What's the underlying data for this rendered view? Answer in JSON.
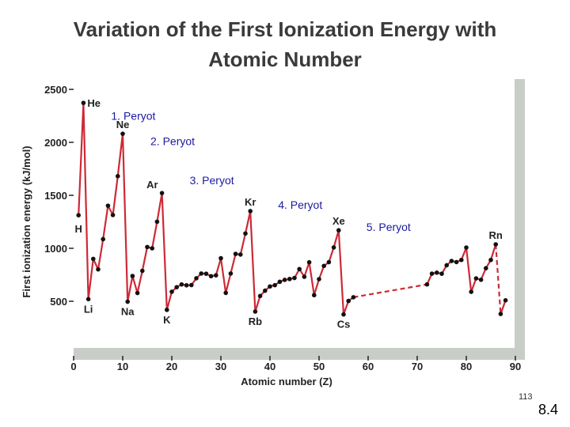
{
  "title_line1": "Variation of the First Ionization Energy with",
  "title_line2": "Atomic Number",
  "slide_number": "113",
  "section_number": "8.4",
  "colors": {
    "line": "#cc2a36",
    "point": "#111111",
    "plot_bg": "#ffffff",
    "frame": "#c8cdc8",
    "period_label": "#1a1aa0"
  },
  "chart_data": {
    "type": "line",
    "title": "Variation of the First Ionization Energy with Atomic Number",
    "xlabel": "Atomic number (Z)",
    "ylabel": "First ionization energy (kJ/mol)",
    "xlim": [
      0,
      90
    ],
    "ylim": [
      0,
      2500
    ],
    "xticks": [
      0,
      10,
      20,
      30,
      40,
      50,
      60,
      70,
      80,
      90
    ],
    "yticks": [
      500,
      1000,
      1500,
      2000,
      2500
    ],
    "grid": false,
    "series": [
      {
        "style": "solid",
        "points": [
          [
            1,
            1312
          ],
          [
            2,
            2372
          ],
          [
            3,
            520
          ],
          [
            4,
            900
          ],
          [
            5,
            801
          ],
          [
            6,
            1086
          ],
          [
            7,
            1402
          ],
          [
            8,
            1314
          ],
          [
            9,
            1681
          ],
          [
            10,
            2081
          ],
          [
            11,
            496
          ],
          [
            12,
            738
          ],
          [
            13,
            578
          ],
          [
            14,
            787
          ],
          [
            15,
            1012
          ],
          [
            16,
            1000
          ],
          [
            17,
            1251
          ],
          [
            18,
            1521
          ],
          [
            19,
            419
          ],
          [
            20,
            590
          ],
          [
            21,
            633
          ],
          [
            22,
            659
          ],
          [
            23,
            651
          ],
          [
            24,
            653
          ],
          [
            25,
            717
          ],
          [
            26,
            762
          ],
          [
            27,
            760
          ],
          [
            28,
            737
          ],
          [
            29,
            745
          ],
          [
            30,
            906
          ],
          [
            31,
            579
          ],
          [
            32,
            762
          ],
          [
            33,
            947
          ],
          [
            34,
            941
          ],
          [
            35,
            1140
          ],
          [
            36,
            1351
          ],
          [
            37,
            403
          ],
          [
            38,
            550
          ],
          [
            39,
            600
          ],
          [
            40,
            640
          ],
          [
            41,
            652
          ],
          [
            42,
            684
          ],
          [
            43,
            702
          ],
          [
            44,
            710
          ],
          [
            45,
            720
          ],
          [
            46,
            804
          ],
          [
            47,
            731
          ],
          [
            48,
            868
          ],
          [
            49,
            558
          ],
          [
            50,
            709
          ],
          [
            51,
            834
          ],
          [
            52,
            869
          ],
          [
            53,
            1008
          ],
          [
            54,
            1170
          ],
          [
            55,
            376
          ],
          [
            56,
            503
          ],
          [
            57,
            538
          ]
        ]
      },
      {
        "style": "dashed",
        "points": [
          [
            57,
            538
          ],
          [
            72,
            659
          ]
        ]
      },
      {
        "style": "solid",
        "points": [
          [
            72,
            659
          ],
          [
            73,
            761
          ],
          [
            74,
            770
          ],
          [
            75,
            760
          ],
          [
            76,
            840
          ],
          [
            77,
            880
          ],
          [
            78,
            870
          ],
          [
            79,
            890
          ],
          [
            80,
            1007
          ],
          [
            81,
            589
          ],
          [
            82,
            716
          ],
          [
            83,
            703
          ],
          [
            84,
            812
          ],
          [
            85,
            890
          ],
          [
            86,
            1037
          ]
        ]
      },
      {
        "style": "dashed",
        "points": [
          [
            86,
            1037
          ],
          [
            87,
            380
          ]
        ]
      },
      {
        "style": "solid",
        "points": [
          [
            87,
            380
          ],
          [
            88,
            509
          ]
        ]
      }
    ],
    "element_labels": [
      {
        "symbol": "He",
        "z": 2,
        "side": "right"
      },
      {
        "symbol": "Ne",
        "z": 10,
        "side": "above"
      },
      {
        "symbol": "Ar",
        "z": 18,
        "side": "left"
      },
      {
        "symbol": "Kr",
        "z": 36,
        "side": "above"
      },
      {
        "symbol": "Xe",
        "z": 54,
        "side": "above"
      },
      {
        "symbol": "Rn",
        "z": 86,
        "side": "above"
      },
      {
        "symbol": "H",
        "z": 1,
        "side": "below"
      },
      {
        "symbol": "Li",
        "z": 3,
        "side": "below"
      },
      {
        "symbol": "Na",
        "z": 11,
        "side": "below"
      },
      {
        "symbol": "K",
        "z": 19,
        "side": "below"
      },
      {
        "symbol": "Rb",
        "z": 37,
        "side": "below"
      },
      {
        "symbol": "Cs",
        "z": 55,
        "side": "below"
      }
    ],
    "annotations": [
      {
        "text": "1. Peryot",
        "z": 2,
        "y": 2250
      },
      {
        "text": "2. Peryot",
        "z": 10,
        "y": 2010
      },
      {
        "text": "3. Peryot",
        "z": 18,
        "y": 1640
      },
      {
        "text": "4. Peryot",
        "z": 36,
        "y": 1410
      },
      {
        "text": "5. Peryot",
        "z": 54,
        "y": 1200
      }
    ]
  }
}
